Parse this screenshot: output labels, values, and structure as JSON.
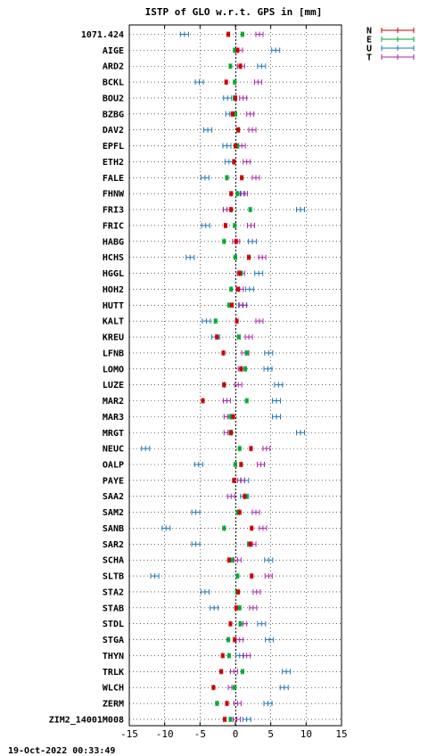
{
  "chart_data": {
    "type": "scatter",
    "title": "ISTP of GLO w.r.t. GPS in [mm]",
    "xlim": [
      -15,
      15
    ],
    "x_ticks": [
      -15,
      -10,
      -5,
      0,
      5,
      10,
      15
    ],
    "grid": true,
    "legend_position": "top-right",
    "series": [
      {
        "name": "N",
        "color": "#cc0000"
      },
      {
        "name": "E",
        "color": "#00aa33"
      },
      {
        "name": "U",
        "color": "#1f77b4"
      },
      {
        "name": "T",
        "color": "#aa22aa"
      }
    ],
    "stations": [
      {
        "label": "1071.424",
        "N": -1.0,
        "E": 1.0,
        "U": -7.2,
        "T": 3.4
      },
      {
        "label": "AIGE",
        "N": 0.3,
        "E": -0.1,
        "U": 5.7,
        "T": 0.5
      },
      {
        "label": "ARD2",
        "N": 0.7,
        "E": -0.7,
        "U": 3.7,
        "T": 0.8
      },
      {
        "label": "BCKL",
        "N": -1.3,
        "E": -0.1,
        "U": -5.1,
        "T": 3.2
      },
      {
        "label": "BOU2",
        "N": 0.0,
        "E": -0.1,
        "U": -1.1,
        "T": 1.1
      },
      {
        "label": "BZBG",
        "N": -0.4,
        "E": 0.0,
        "U": -0.8,
        "T": 2.1
      },
      {
        "label": "DAV2",
        "N": 0.4,
        "E": 0.4,
        "U": -3.9,
        "T": 2.4
      },
      {
        "label": "EPFL",
        "N": 0.0,
        "E": 0.3,
        "U": -1.2,
        "T": 0.9
      },
      {
        "label": "ETH2",
        "N": -0.2,
        "E": -0.2,
        "U": -0.9,
        "T": 1.6
      },
      {
        "label": "FALE",
        "N": 0.9,
        "E": -1.2,
        "U": -4.3,
        "T": 2.9
      },
      {
        "label": "FHNW",
        "N": -0.6,
        "E": 0.3,
        "U": 0.8,
        "T": 1.2
      },
      {
        "label": "FRI3",
        "N": -0.6,
        "E": 2.1,
        "U": 9.2,
        "T": -1.2
      },
      {
        "label": "FRIC",
        "N": -1.4,
        "E": -0.1,
        "U": -4.2,
        "T": 2.2
      },
      {
        "label": "HABG",
        "N": 0.1,
        "E": -1.6,
        "U": 2.4,
        "T": 0.1
      },
      {
        "label": "HCHS",
        "N": 1.9,
        "E": 0.0,
        "U": -6.4,
        "T": 3.8
      },
      {
        "label": "HGGL",
        "N": 0.6,
        "E": 0.8,
        "U": 3.3,
        "T": 0.8
      },
      {
        "label": "HOH2",
        "N": 0.4,
        "E": -0.6,
        "U": 2.0,
        "T": 0.6
      },
      {
        "label": "HUTT",
        "N": -0.5,
        "E": -0.9,
        "U": 1.0,
        "T": 1.1
      },
      {
        "label": "KALT",
        "N": 0.2,
        "E": -2.8,
        "U": -4.1,
        "T": 3.4
      },
      {
        "label": "KREU",
        "N": -2.6,
        "E": 0.5,
        "U": -2.8,
        "T": 1.9
      },
      {
        "label": "LFNB",
        "N": -1.7,
        "E": 1.6,
        "U": 4.7,
        "T": 1.4
      },
      {
        "label": "LOMO",
        "N": 0.8,
        "E": 1.4,
        "U": 4.6,
        "T": 0.9
      },
      {
        "label": "LUZE",
        "N": -1.6,
        "E": -1.6,
        "U": 6.1,
        "T": 0.4
      },
      {
        "label": "MAR2",
        "N": -4.6,
        "E": 1.6,
        "U": 5.8,
        "T": -1.2
      },
      {
        "label": "MAR3",
        "N": -0.3,
        "E": -0.7,
        "U": 5.8,
        "T": -1.1
      },
      {
        "label": "MRGT",
        "N": -0.6,
        "E": -0.7,
        "U": 9.2,
        "T": -1.1
      },
      {
        "label": "NEUC",
        "N": 2.2,
        "E": 0.6,
        "U": -12.7,
        "T": 4.4
      },
      {
        "label": "OALP",
        "N": 0.8,
        "E": 0.0,
        "U": -5.2,
        "T": 3.6
      },
      {
        "label": "PAYE",
        "N": -0.2,
        "E": -0.2,
        "U": 1.3,
        "T": 0.8
      },
      {
        "label": "SAA2",
        "N": 1.3,
        "E": 1.5,
        "U": 1.3,
        "T": -0.6
      },
      {
        "label": "SAM2",
        "N": 0.6,
        "E": 0.3,
        "U": -5.6,
        "T": 2.9
      },
      {
        "label": "SANB",
        "N": 2.3,
        "E": -1.6,
        "U": -9.8,
        "T": 3.9
      },
      {
        "label": "SAR2",
        "N": 2.1,
        "E": 1.9,
        "U": -5.6,
        "T": 2.4
      },
      {
        "label": "SCHA",
        "N": -0.9,
        "E": -0.5,
        "U": 4.7,
        "T": 0.3
      },
      {
        "label": "SLTB",
        "N": 2.3,
        "E": 0.3,
        "U": -11.4,
        "T": 4.7
      },
      {
        "label": "STA2",
        "N": 0.4,
        "E": 0.2,
        "U": -4.3,
        "T": 3.0
      },
      {
        "label": "STAB",
        "N": 0.1,
        "E": 0.6,
        "U": -3.0,
        "T": 2.5
      },
      {
        "label": "STDL",
        "N": -0.7,
        "E": 0.7,
        "U": 3.7,
        "T": 1.1
      },
      {
        "label": "STGA",
        "N": -0.1,
        "E": -1.0,
        "U": 4.8,
        "T": 0.6
      },
      {
        "label": "THYN",
        "N": -1.8,
        "E": -0.9,
        "U": 0.6,
        "T": 1.6
      },
      {
        "label": "TRLK",
        "N": -2.0,
        "E": 1.0,
        "U": 7.2,
        "T": -0.2
      },
      {
        "label": "WLCH",
        "N": -3.1,
        "E": -0.1,
        "U": 6.9,
        "T": -0.5
      },
      {
        "label": "ZERM",
        "N": -1.2,
        "E": -2.6,
        "U": 4.6,
        "T": 0.3
      },
      {
        "label": "ZIM2_14001M008",
        "N": -1.5,
        "E": -0.7,
        "U": 1.6,
        "T": 0.2
      }
    ],
    "timestamp": "19-Oct-2022 00:33:49"
  }
}
